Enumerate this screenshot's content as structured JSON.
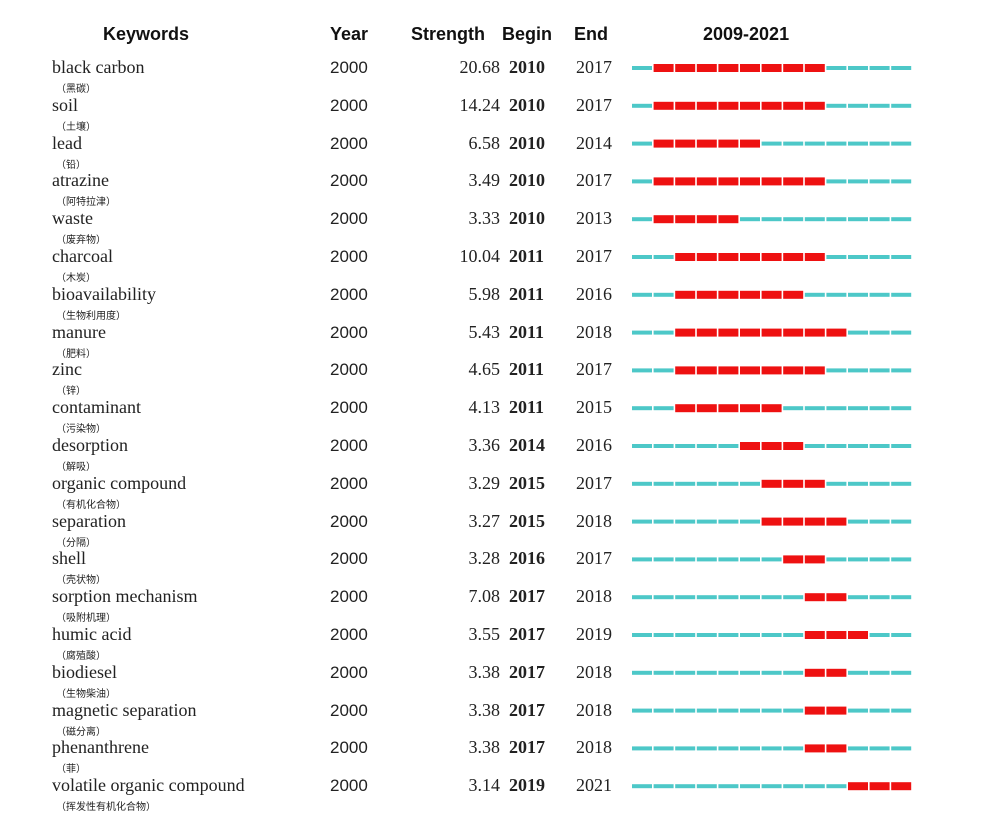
{
  "header": {
    "keywords": "Keywords",
    "year": "Year",
    "strength": "Strength",
    "begin": "Begin",
    "end": "End",
    "range": "2009-2021"
  },
  "colors": {
    "burst": "#ee1111",
    "normal": "#4dc8c8"
  },
  "chart_data": {
    "type": "table",
    "timeline_start": 2009,
    "timeline_end": 2021,
    "rows": [
      {
        "keyword": "black carbon",
        "zh": "（黑碳）",
        "year": "2000",
        "strength": "20.68",
        "begin": "2010",
        "end": "2017"
      },
      {
        "keyword": "soil",
        "zh": "（土壤）",
        "year": "2000",
        "strength": "14.24",
        "begin": "2010",
        "end": "2017"
      },
      {
        "keyword": "lead",
        "zh": "（铅）",
        "year": "2000",
        "strength": "6.58",
        "begin": "2010",
        "end": "2014"
      },
      {
        "keyword": "atrazine",
        "zh": "（阿特拉津）",
        "year": "2000",
        "strength": "3.49",
        "begin": "2010",
        "end": "2017"
      },
      {
        "keyword": "waste",
        "zh": "（废弃物）",
        "year": "2000",
        "strength": "3.33",
        "begin": "2010",
        "end": "2013"
      },
      {
        "keyword": "charcoal",
        "zh": "（木炭）",
        "year": "2000",
        "strength": "10.04",
        "begin": "2011",
        "end": "2017"
      },
      {
        "keyword": "bioavailability",
        "zh": "（生物利用度）",
        "year": "2000",
        "strength": "5.98",
        "begin": "2011",
        "end": "2016"
      },
      {
        "keyword": "manure",
        "zh": "（肥料）",
        "year": "2000",
        "strength": "5.43",
        "begin": "2011",
        "end": "2018"
      },
      {
        "keyword": "zinc",
        "zh": "（锌）",
        "year": "2000",
        "strength": "4.65",
        "begin": "2011",
        "end": "2017"
      },
      {
        "keyword": "contaminant",
        "zh": "（污染物）",
        "year": "2000",
        "strength": "4.13",
        "begin": "2011",
        "end": "2015"
      },
      {
        "keyword": "desorption",
        "zh": "（解吸）",
        "year": "2000",
        "strength": "3.36",
        "begin": "2014",
        "end": "2016"
      },
      {
        "keyword": "organic compound",
        "zh": "（有机化合物）",
        "year": "2000",
        "strength": "3.29",
        "begin": "2015",
        "end": "2017"
      },
      {
        "keyword": "separation",
        "zh": "（分隔）",
        "year": "2000",
        "strength": "3.27",
        "begin": "2015",
        "end": "2018"
      },
      {
        "keyword": "shell",
        "zh": "（壳状物）",
        "year": "2000",
        "strength": "3.28",
        "begin": "2016",
        "end": "2017"
      },
      {
        "keyword": "sorption mechanism",
        "zh": "（吸附机理）",
        "year": "2000",
        "strength": "7.08",
        "begin": "2017",
        "end": "2018"
      },
      {
        "keyword": "humic acid",
        "zh": "（腐殖酸）",
        "year": "2000",
        "strength": "3.55",
        "begin": "2017",
        "end": "2019"
      },
      {
        "keyword": "biodiesel",
        "zh": "（生物柴油）",
        "year": "2000",
        "strength": "3.38",
        "begin": "2017",
        "end": "2018"
      },
      {
        "keyword": "magnetic separation",
        "zh": "（磁分离）",
        "year": "2000",
        "strength": "3.38",
        "begin": "2017",
        "end": "2018"
      },
      {
        "keyword": "phenanthrene",
        "zh": "（菲）",
        "year": "2000",
        "strength": "3.38",
        "begin": "2017",
        "end": "2018"
      },
      {
        "keyword": "volatile organic compound",
        "zh": "（挥发性有机化合物）",
        "year": "2000",
        "strength": "3.14",
        "begin": "2019",
        "end": "2021"
      }
    ]
  }
}
